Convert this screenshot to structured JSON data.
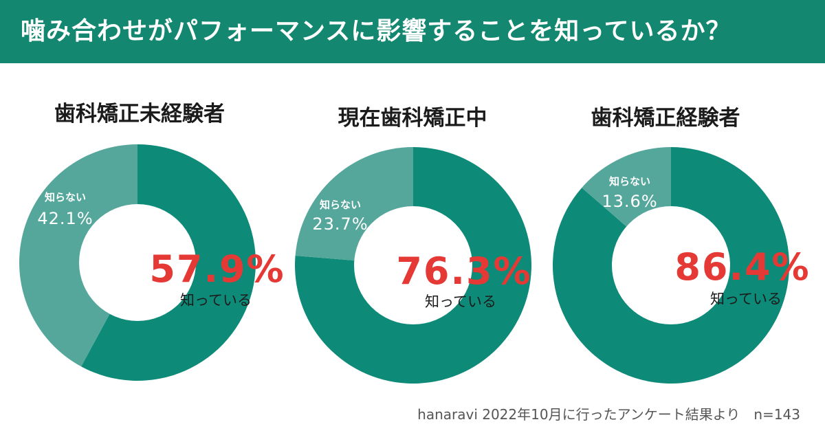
{
  "header": {
    "title": "噛み合わせがパフォーマンスに影響することを知っているか？"
  },
  "colors": {
    "header_bg": "#13876f",
    "know": "#0e8a78",
    "dont_know": "#55a79b",
    "accent_red": "#e53935"
  },
  "chart_data": [
    {
      "type": "pie",
      "title": "歯科矯正未経験者",
      "categories": [
        "知っている",
        "知らない"
      ],
      "values": [
        57.9,
        42.1
      ],
      "value_labels": [
        "57.9%",
        "42.1%"
      ]
    },
    {
      "type": "pie",
      "title": "現在歯科矯正中",
      "categories": [
        "知っている",
        "知らない"
      ],
      "values": [
        76.3,
        23.7
      ],
      "value_labels": [
        "76.3%",
        "23.7%"
      ]
    },
    {
      "type": "pie",
      "title": "歯科矯正経験者",
      "categories": [
        "知っている",
        "知らない"
      ],
      "values": [
        86.4,
        13.6
      ],
      "value_labels": [
        "86.4%",
        "13.6%"
      ]
    }
  ],
  "footer": {
    "source": "hanaravi 2022年10月に行ったアンケート結果より　n=143"
  }
}
